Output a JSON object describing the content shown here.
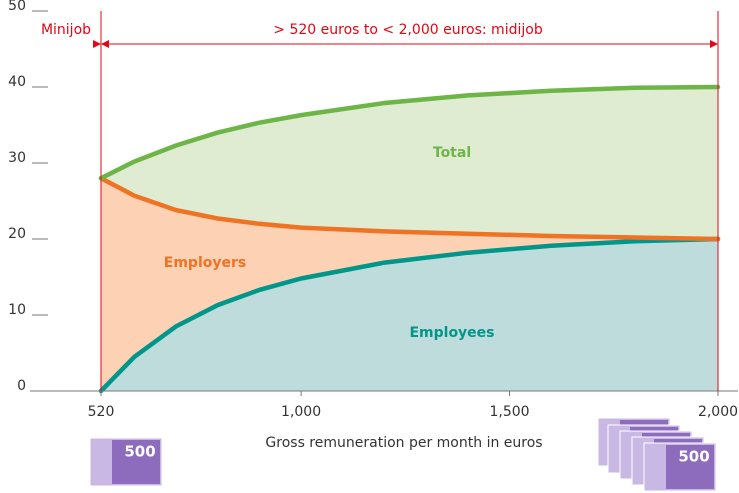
{
  "chart_data": {
    "type": "line",
    "x": [
      520,
      600,
      700,
      800,
      900,
      1000,
      1200,
      1400,
      1600,
      1800,
      2000
    ],
    "series": [
      {
        "name": "Employees",
        "color": "#00968a",
        "fill": "#bfdcdc",
        "values": [
          0,
          4.5,
          8.5,
          11.3,
          13.3,
          14.8,
          16.9,
          18.2,
          19.1,
          19.7,
          20
        ]
      },
      {
        "name": "Employers",
        "color": "#f07223",
        "fill": "#fdd1b3",
        "values": [
          28,
          25.7,
          23.8,
          22.7,
          22,
          21.5,
          21,
          20.7,
          20.4,
          20.2,
          20
        ]
      },
      {
        "name": "Total",
        "color": "#6cb546",
        "fill": "#dfecd2",
        "values": [
          28,
          30.2,
          32.3,
          34,
          35.3,
          36.3,
          37.9,
          38.9,
          39.5,
          39.9,
          40
        ]
      }
    ],
    "xlim": [
      520,
      2000
    ],
    "xticks": [
      520,
      {
        "value": 1000,
        "label": "1,000"
      },
      {
        "value": 1500,
        "label": "1,500"
      },
      {
        "value": 2000,
        "label": "2,000"
      }
    ],
    "ylim": [
      0,
      50
    ],
    "yticks": [
      0,
      10,
      20,
      30,
      40,
      50
    ],
    "x_label": "Gross remuneration per month in euros",
    "annotations": [
      "Minijob",
      "> 520 euros to < 2,000 euros: midijob"
    ],
    "banknote": "500"
  }
}
